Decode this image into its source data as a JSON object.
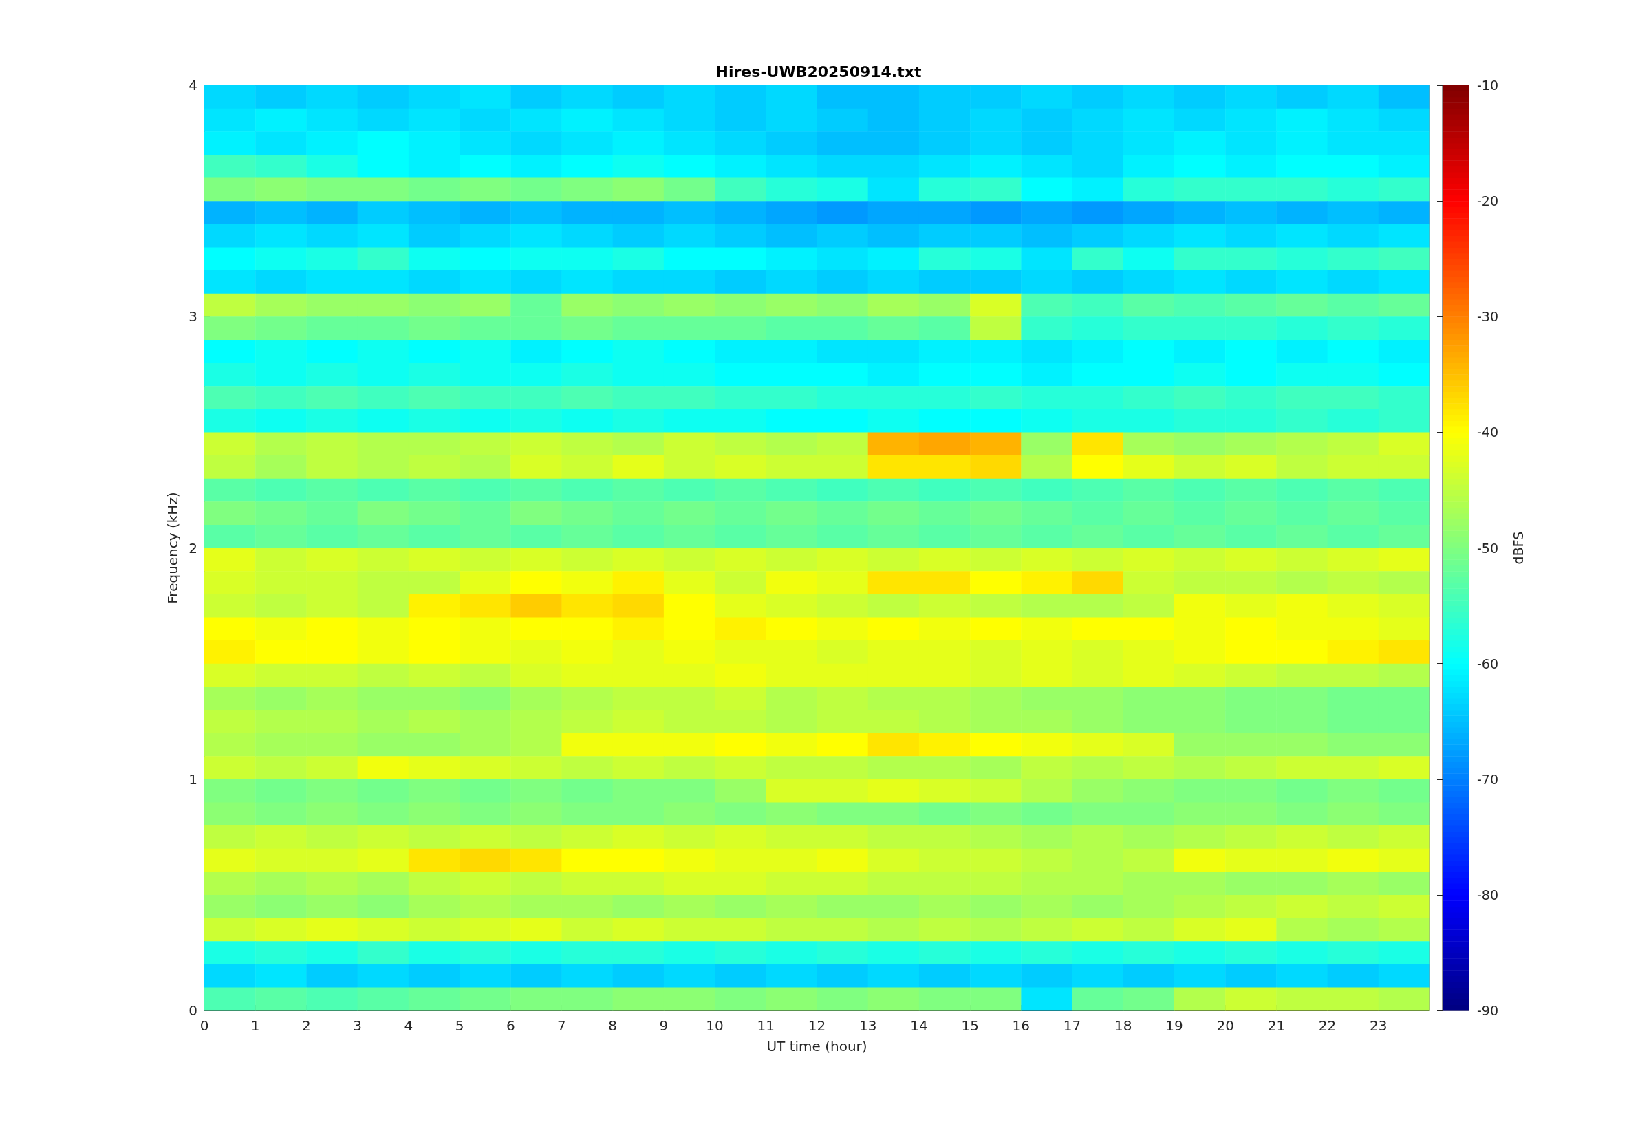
{
  "chart_data": {
    "type": "heatmap",
    "title": "Hires-UWB20250914.txt",
    "xlabel": "UT time (hour)",
    "ylabel": "Frequency (kHz)",
    "clabel": "dBFS",
    "x": [
      0.5,
      1.5,
      2.5,
      3.5,
      4.5,
      5.5,
      6.5,
      7.5,
      8.5,
      9.5,
      10.5,
      11.5,
      12.5,
      13.5,
      14.5,
      15.5,
      16.5,
      17.5,
      18.5,
      19.5,
      20.5,
      21.5,
      22.5,
      23.5
    ],
    "xlim": [
      0,
      24
    ],
    "xticks": [
      0,
      1,
      2,
      3,
      4,
      5,
      6,
      7,
      8,
      9,
      10,
      11,
      12,
      13,
      14,
      15,
      16,
      17,
      18,
      19,
      20,
      21,
      22,
      23
    ],
    "ylim": [
      0,
      4
    ],
    "yticks": [
      0,
      1,
      2,
      3,
      4
    ],
    "clim": [
      -90,
      -10
    ],
    "cticks": [
      -90,
      -80,
      -70,
      -60,
      -50,
      -40,
      -30,
      -20,
      -10
    ],
    "cells": [
      [
        -63,
        -64,
        -63,
        -64,
        -63,
        -62,
        -64,
        -63,
        -64,
        -63,
        -64,
        -63,
        -65,
        -65,
        -64,
        -64,
        -63,
        -64,
        -63,
        -64,
        -63,
        -64,
        -63,
        -65
      ],
      [
        -62,
        -61,
        -62,
        -63,
        -62,
        -63,
        -62,
        -61,
        -62,
        -63,
        -64,
        -63,
        -64,
        -65,
        -64,
        -63,
        -64,
        -63,
        -62,
        -63,
        -62,
        -61,
        -62,
        -63
      ],
      [
        -61,
        -62,
        -61,
        -60,
        -61,
        -62,
        -63,
        -62,
        -61,
        -62,
        -63,
        -64,
        -65,
        -65,
        -64,
        -63,
        -64,
        -63,
        -62,
        -61,
        -62,
        -61,
        -62,
        -62
      ],
      [
        -55,
        -56,
        -58,
        -60,
        -61,
        -60,
        -61,
        -60,
        -59,
        -60,
        -61,
        -62,
        -63,
        -63,
        -62,
        -61,
        -62,
        -63,
        -61,
        -60,
        -61,
        -60,
        -60,
        -61
      ],
      [
        -50,
        -49,
        -50,
        -50,
        -51,
        -50,
        -51,
        -50,
        -49,
        -51,
        -55,
        -57,
        -58,
        -62,
        -57,
        -56,
        -60,
        -61,
        -57,
        -56,
        -56,
        -56,
        -57,
        -56
      ],
      [
        -66,
        -65,
        -66,
        -64,
        -65,
        -66,
        -65,
        -66,
        -66,
        -65,
        -66,
        -67,
        -68,
        -67,
        -67,
        -68,
        -67,
        -68,
        -67,
        -66,
        -65,
        -66,
        -65,
        -66
      ],
      [
        -63,
        -62,
        -63,
        -62,
        -64,
        -63,
        -62,
        -63,
        -64,
        -63,
        -64,
        -65,
        -64,
        -65,
        -64,
        -64,
        -65,
        -64,
        -63,
        -62,
        -63,
        -62,
        -63,
        -62
      ],
      [
        -60,
        -59,
        -58,
        -56,
        -59,
        -60,
        -59,
        -59,
        -58,
        -60,
        -60,
        -61,
        -62,
        -61,
        -57,
        -58,
        -62,
        -56,
        -59,
        -56,
        -56,
        -57,
        -56,
        -55
      ],
      [
        -62,
        -63,
        -62,
        -62,
        -63,
        -62,
        -63,
        -62,
        -63,
        -63,
        -64,
        -63,
        -64,
        -63,
        -64,
        -64,
        -63,
        -64,
        -63,
        -62,
        -63,
        -62,
        -63,
        -62
      ],
      [
        -45,
        -47,
        -48,
        -48,
        -49,
        -48,
        -52,
        -48,
        -49,
        -48,
        -49,
        -48,
        -49,
        -47,
        -48,
        -43,
        -54,
        -55,
        -53,
        -54,
        -53,
        -52,
        -53,
        -52
      ],
      [
        -50,
        -51,
        -52,
        -52,
        -51,
        -52,
        -52,
        -51,
        -52,
        -52,
        -52,
        -53,
        -53,
        -52,
        -53,
        -45,
        -56,
        -57,
        -56,
        -56,
        -56,
        -57,
        -56,
        -57
      ],
      [
        -60,
        -59,
        -60,
        -59,
        -60,
        -59,
        -61,
        -60,
        -59,
        -60,
        -61,
        -61,
        -62,
        -62,
        -61,
        -61,
        -62,
        -61,
        -60,
        -61,
        -60,
        -61,
        -60,
        -61
      ],
      [
        -58,
        -59,
        -58,
        -59,
        -58,
        -59,
        -59,
        -58,
        -59,
        -59,
        -60,
        -60,
        -60,
        -61,
        -60,
        -60,
        -61,
        -60,
        -60,
        -59,
        -60,
        -59,
        -59,
        -60
      ],
      [
        -54,
        -55,
        -54,
        -55,
        -54,
        -55,
        -55,
        -54,
        -55,
        -55,
        -56,
        -56,
        -57,
        -57,
        -57,
        -56,
        -57,
        -57,
        -56,
        -55,
        -56,
        -55,
        -55,
        -56
      ],
      [
        -58,
        -59,
        -58,
        -59,
        -58,
        -59,
        -58,
        -59,
        -58,
        -59,
        -59,
        -60,
        -60,
        -59,
        -60,
        -60,
        -59,
        -58,
        -58,
        -57,
        -57,
        -56,
        -57,
        -56
      ],
      [
        -44,
        -46,
        -45,
        -46,
        -46,
        -45,
        -44,
        -45,
        -46,
        -44,
        -45,
        -46,
        -45,
        -34,
        -33,
        -34,
        -48,
        -38,
        -47,
        -48,
        -47,
        -46,
        -45,
        -43
      ],
      [
        -45,
        -47,
        -45,
        -46,
        -45,
        -46,
        -43,
        -44,
        -42,
        -44,
        -43,
        -44,
        -44,
        -38,
        -38,
        -37,
        -46,
        -40,
        -42,
        -44,
        -43,
        -45,
        -44,
        -44
      ],
      [
        -53,
        -54,
        -53,
        -54,
        -53,
        -54,
        -53,
        -54,
        -53,
        -54,
        -53,
        -54,
        -55,
        -54,
        -55,
        -54,
        -55,
        -54,
        -53,
        -54,
        -53,
        -54,
        -53,
        -54
      ],
      [
        -50,
        -51,
        -52,
        -50,
        -51,
        -52,
        -50,
        -51,
        -52,
        -51,
        -52,
        -51,
        -52,
        -51,
        -52,
        -51,
        -52,
        -53,
        -52,
        -53,
        -52,
        -53,
        -52,
        -53
      ],
      [
        -53,
        -52,
        -53,
        -52,
        -53,
        -52,
        -53,
        -52,
        -53,
        -52,
        -53,
        -52,
        -53,
        -52,
        -53,
        -52,
        -53,
        -52,
        -53,
        -52,
        -53,
        -52,
        -53,
        -52
      ],
      [
        -42,
        -44,
        -43,
        -44,
        -43,
        -44,
        -43,
        -44,
        -43,
        -44,
        -43,
        -44,
        -43,
        -44,
        -43,
        -44,
        -43,
        -44,
        -43,
        -44,
        -43,
        -44,
        -43,
        -42
      ],
      [
        -43,
        -44,
        -44,
        -45,
        -45,
        -42,
        -40,
        -41,
        -39,
        -42,
        -44,
        -41,
        -42,
        -38,
        -38,
        -40,
        -39,
        -37,
        -44,
        -45,
        -45,
        -46,
        -45,
        -46
      ],
      [
        -44,
        -45,
        -44,
        -45,
        -39,
        -38,
        -36,
        -38,
        -37,
        -40,
        -42,
        -43,
        -44,
        -45,
        -44,
        -45,
        -46,
        -46,
        -45,
        -41,
        -42,
        -41,
        -42,
        -43
      ],
      [
        -40,
        -41,
        -40,
        -41,
        -40,
        -41,
        -40,
        -40,
        -39,
        -40,
        -39,
        -40,
        -41,
        -40,
        -41,
        -40,
        -41,
        -40,
        -40,
        -41,
        -40,
        -41,
        -41,
        -42
      ],
      [
        -39,
        -40,
        -40,
        -41,
        -40,
        -41,
        -42,
        -41,
        -42,
        -41,
        -42,
        -42,
        -43,
        -42,
        -42,
        -43,
        -42,
        -43,
        -42,
        -41,
        -40,
        -40,
        -39,
        -38
      ],
      [
        -43,
        -44,
        -44,
        -45,
        -44,
        -45,
        -43,
        -42,
        -42,
        -42,
        -41,
        -42,
        -42,
        -42,
        -42,
        -43,
        -42,
        -43,
        -42,
        -43,
        -44,
        -45,
        -45,
        -46
      ],
      [
        -47,
        -48,
        -47,
        -48,
        -48,
        -49,
        -47,
        -46,
        -45,
        -45,
        -44,
        -46,
        -45,
        -46,
        -46,
        -47,
        -48,
        -48,
        -49,
        -49,
        -50,
        -50,
        -51,
        -51
      ],
      [
        -45,
        -46,
        -46,
        -47,
        -46,
        -47,
        -46,
        -45,
        -44,
        -45,
        -45,
        -46,
        -45,
        -45,
        -46,
        -47,
        -47,
        -48,
        -49,
        -49,
        -50,
        -50,
        -51,
        -51
      ],
      [
        -46,
        -47,
        -47,
        -48,
        -48,
        -47,
        -46,
        -41,
        -41,
        -41,
        -40,
        -41,
        -40,
        -38,
        -39,
        -40,
        -41,
        -42,
        -43,
        -48,
        -48,
        -48,
        -49,
        -49
      ],
      [
        -44,
        -45,
        -44,
        -41,
        -42,
        -43,
        -44,
        -45,
        -44,
        -45,
        -44,
        -45,
        -45,
        -46,
        -46,
        -47,
        -45,
        -46,
        -45,
        -46,
        -45,
        -44,
        -44,
        -43
      ],
      [
        -50,
        -51,
        -50,
        -51,
        -50,
        -51,
        -50,
        -51,
        -50,
        -50,
        -48,
        -43,
        -43,
        -42,
        -43,
        -44,
        -46,
        -48,
        -49,
        -50,
        -50,
        -51,
        -50,
        -51
      ],
      [
        -49,
        -50,
        -49,
        -50,
        -49,
        -50,
        -49,
        -50,
        -50,
        -49,
        -50,
        -49,
        -50,
        -50,
        -51,
        -50,
        -51,
        -50,
        -50,
        -49,
        -49,
        -50,
        -49,
        -50
      ],
      [
        -45,
        -44,
        -45,
        -44,
        -45,
        -44,
        -45,
        -44,
        -43,
        -44,
        -43,
        -44,
        -44,
        -45,
        -45,
        -46,
        -47,
        -46,
        -47,
        -46,
        -45,
        -44,
        -45,
        -44
      ],
      [
        -42,
        -43,
        -43,
        -42,
        -38,
        -37,
        -38,
        -40,
        -40,
        -41,
        -42,
        -42,
        -41,
        -43,
        -44,
        -44,
        -45,
        -46,
        -45,
        -41,
        -42,
        -42,
        -41,
        -42
      ],
      [
        -46,
        -47,
        -46,
        -47,
        -45,
        -44,
        -45,
        -44,
        -44,
        -43,
        -43,
        -44,
        -44,
        -45,
        -45,
        -45,
        -46,
        -46,
        -47,
        -47,
        -48,
        -48,
        -47,
        -48
      ],
      [
        -48,
        -49,
        -48,
        -49,
        -47,
        -46,
        -47,
        -47,
        -48,
        -47,
        -48,
        -47,
        -48,
        -48,
        -47,
        -48,
        -47,
        -48,
        -47,
        -46,
        -45,
        -44,
        -45,
        -44
      ],
      [
        -44,
        -43,
        -42,
        -43,
        -44,
        -43,
        -42,
        -44,
        -43,
        -44,
        -44,
        -45,
        -45,
        -46,
        -45,
        -46,
        -45,
        -44,
        -45,
        -43,
        -42,
        -46,
        -47,
        -46
      ],
      [
        -58,
        -57,
        -58,
        -56,
        -58,
        -57,
        -58,
        -57,
        -57,
        -58,
        -57,
        -58,
        -57,
        -58,
        -57,
        -58,
        -57,
        -58,
        -57,
        -58,
        -57,
        -58,
        -57,
        -58
      ],
      [
        -63,
        -62,
        -64,
        -63,
        -64,
        -63,
        -64,
        -63,
        -64,
        -63,
        -64,
        -63,
        -64,
        -63,
        -64,
        -63,
        -64,
        -63,
        -64,
        -63,
        -64,
        -63,
        -64,
        -63
      ],
      [
        -54,
        -53,
        -54,
        -53,
        -52,
        -51,
        -50,
        -50,
        -49,
        -49,
        -50,
        -49,
        -50,
        -49,
        -50,
        -50,
        -62,
        -52,
        -51,
        -46,
        -44,
        -45,
        -45,
        -46
      ]
    ]
  }
}
